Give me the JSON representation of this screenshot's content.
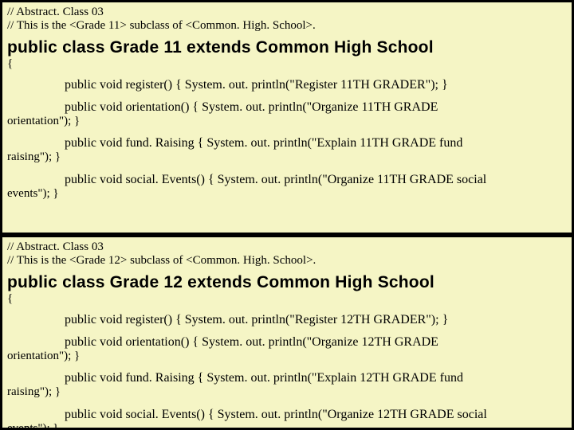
{
  "box1": {
    "comment1": "// Abstract. Class 03",
    "comment2": "// This is the <Grade 11> subclass of <Common. High. School>.",
    "classDecl": "public class Grade 11 extends Common High School",
    "openBrace": "{",
    "m1": "public void register()   {   System. out. println(\"Register 11TH GRADER\");   }",
    "m2a": "public void orientation()   {   System. out. println(\"Organize 11TH GRADE",
    "m2b": "orientation\");   }",
    "m3a": "public void fund. Raising   {   System. out. println(\"Explain 11TH GRADE fund",
    "m3b": "raising\");   }",
    "m4a": "public void social. Events()  {  System. out. println(\"Organize 11TH GRADE social",
    "m4b": "events\");   }"
  },
  "box2": {
    "comment1": "// Abstract. Class 03",
    "comment2": "// This is the <Grade 12> subclass of <Common. High. School>.",
    "classDecl": "public class Grade 12 extends Common High School",
    "openBrace": "{",
    "m1": "public void register()   {   System. out. println(\"Register 12TH GRADER\");   }",
    "m2a": "public void orientation()   {   System. out. println(\"Organize 12TH GRADE",
    "m2b": "orientation\");   }",
    "m3a": "public void fund. Raising   {   System. out. println(\"Explain 12TH GRADE fund",
    "m3b": "raising\");   }",
    "m4a": "public void social. Events()  {  System. out. println(\"Organize 12TH GRADE social",
    "m4b": "events\");   }"
  }
}
